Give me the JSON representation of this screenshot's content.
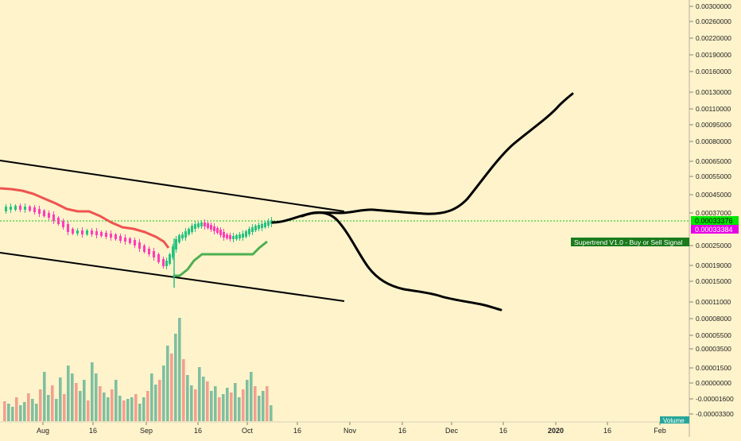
{
  "chart_data": {
    "type": "candlestick",
    "title": "",
    "price_scale": {
      "position": "right",
      "scale": "log",
      "tick_labels": [
        "0.00300000",
        "0.00260000",
        "0.00220000",
        "0.00190000",
        "0.00160000",
        "0.00130000",
        "0.00110000",
        "0.00095000",
        "0.00080000",
        "0.00065000",
        "0.00055000",
        "0.00045000",
        "0.00037000",
        "0.00025000",
        "0.00019000",
        "0.00015000",
        "0.00011000",
        "0.00008000",
        "0.00005500",
        "0.00003500",
        "0.00001500",
        "0.00000000",
        "-0.00001600",
        "-0.00003300"
      ]
    },
    "time_axis": {
      "tick_labels": [
        "Aug",
        "16",
        "Sep",
        "16",
        "Oct",
        "16",
        "Nov",
        "16",
        "Dec",
        "16",
        "2020",
        "16",
        "Feb"
      ]
    },
    "last_price_label": "0.00033376",
    "supertrend_price_label": "0.00033384",
    "indicator_label": "Supertrend V1.0 - Buy or Sell Signal",
    "volume_label": "Volume",
    "colors": {
      "background": "#fef3cb",
      "up": "#26c281",
      "down": "#ff3dba",
      "supertrend_down": "#ef5350",
      "supertrend_up": "#4caf50",
      "volume_up": "#7fbfa0",
      "volume_down": "#f2a08f",
      "last_price": "#00e600",
      "supertrend_badge": "#e600e6",
      "indicator_badge": "#1b7a1b"
    }
  }
}
